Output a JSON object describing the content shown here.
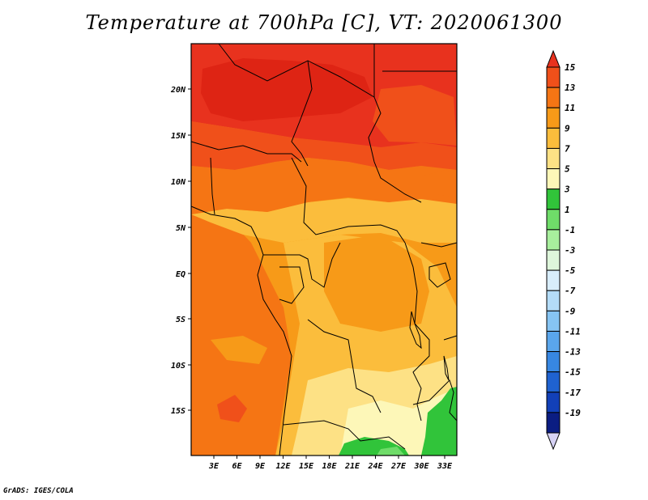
{
  "title": "Temperature at 700hPa [C], VT: 2020061300",
  "credit": "GrADS: IGES/COLA",
  "map": {
    "lat_labels": [
      "20N",
      "15N",
      "10N",
      "5N",
      "EQ",
      "5S",
      "10S",
      "15S"
    ],
    "lon_labels": [
      "3E",
      "6E",
      "9E",
      "12E",
      "15E",
      "18E",
      "21E",
      "24E",
      "27E",
      "30E",
      "33E"
    ],
    "region": "Central Africa",
    "lon_range": [
      0,
      35
    ],
    "lat_range": [
      -20,
      25
    ]
  },
  "colorbar": {
    "labels": [
      "15",
      "13",
      "11",
      "9",
      "7",
      "5",
      "3",
      "1",
      "-1",
      "-3",
      "-5",
      "-7",
      "-9",
      "-11",
      "-13",
      "-15",
      "-17",
      "-19"
    ],
    "colors": [
      "#e8321e",
      "#f0501a",
      "#f57514",
      "#f79a18",
      "#fbbd3c",
      "#fde185",
      "#fdf7b8",
      "#31c43a",
      "#6fdc69",
      "#a8ef9d",
      "#def6db",
      "#d8edfb",
      "#b4dcf8",
      "#86c4f3",
      "#5aa6ec",
      "#3787e2",
      "#1f62d0",
      "#1240b8",
      "#0b1d82",
      "#d6d2f5"
    ]
  },
  "fields": {
    "c_red": "#e8321e",
    "c_deepred": "#de2414",
    "c_orangered": "#f0501a",
    "c_orange": "#f57514",
    "c_orange2": "#f79a18",
    "c_lightorange": "#fbbd3c",
    "c_yellow": "#fde185",
    "c_paleyellow": "#fdf7b8",
    "c_green": "#31c43a",
    "c_lightgreen": "#6fdc69"
  }
}
